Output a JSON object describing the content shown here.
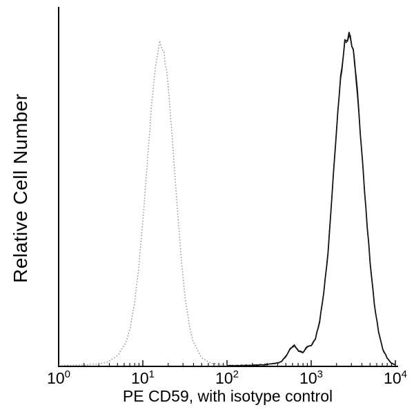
{
  "figure": {
    "background": "#ffffff",
    "axis_color": "#000000"
  },
  "chart_data": {
    "type": "line",
    "subtype": "flow-cytometry-histogram",
    "title": "",
    "xlabel": "PE CD59, with isotype control",
    "ylabel": "Relative Cell Number",
    "x_scale": "log10",
    "x_range_log": [
      0,
      4
    ],
    "x_tick_base": "10",
    "x_tick_exponents": [
      0,
      1,
      2,
      3,
      4
    ],
    "y_range_pct": [
      0,
      100
    ],
    "grid": false,
    "legend": "none",
    "series": [
      {
        "name": "isotype control",
        "style": "dotted",
        "color": "#949494",
        "peak_center_log": 1.2,
        "peak_height_pct": 94,
        "points": [
          [
            0.0,
            0.3
          ],
          [
            0.3,
            0.4
          ],
          [
            0.5,
            0.8
          ],
          [
            0.6,
            1.5
          ],
          [
            0.7,
            3
          ],
          [
            0.8,
            7
          ],
          [
            0.85,
            11
          ],
          [
            0.9,
            18
          ],
          [
            0.95,
            28
          ],
          [
            1.0,
            42
          ],
          [
            1.05,
            58
          ],
          [
            1.1,
            74
          ],
          [
            1.15,
            87
          ],
          [
            1.2,
            94
          ],
          [
            1.25,
            91
          ],
          [
            1.3,
            81
          ],
          [
            1.35,
            66
          ],
          [
            1.4,
            49
          ],
          [
            1.45,
            33
          ],
          [
            1.5,
            20
          ],
          [
            1.55,
            12
          ],
          [
            1.6,
            7
          ],
          [
            1.7,
            2.5
          ],
          [
            1.8,
            1
          ],
          [
            1.9,
            0.5
          ],
          [
            2.1,
            0.2
          ]
        ]
      },
      {
        "name": "PE CD59",
        "style": "solid",
        "color": "#141414",
        "peak_center_log": 3.43,
        "peak_height_pct": 96,
        "points": [
          [
            2.0,
            0.2
          ],
          [
            2.3,
            0.3
          ],
          [
            2.5,
            0.6
          ],
          [
            2.6,
            1
          ],
          [
            2.65,
            1.5
          ],
          [
            2.7,
            3
          ],
          [
            2.75,
            5
          ],
          [
            2.8,
            6
          ],
          [
            2.85,
            4.5
          ],
          [
            2.9,
            4
          ],
          [
            2.95,
            5.5
          ],
          [
            3.0,
            6
          ],
          [
            3.05,
            8
          ],
          [
            3.1,
            13
          ],
          [
            3.15,
            21
          ],
          [
            3.2,
            33
          ],
          [
            3.25,
            50
          ],
          [
            3.3,
            68
          ],
          [
            3.35,
            83
          ],
          [
            3.4,
            93
          ],
          [
            3.45,
            96
          ],
          [
            3.5,
            91
          ],
          [
            3.55,
            79
          ],
          [
            3.6,
            62
          ],
          [
            3.65,
            45
          ],
          [
            3.7,
            30
          ],
          [
            3.75,
            18
          ],
          [
            3.8,
            10
          ],
          [
            3.85,
            5
          ],
          [
            3.9,
            2.5
          ],
          [
            3.95,
            1
          ],
          [
            4.0,
            0.5
          ]
        ]
      }
    ]
  }
}
